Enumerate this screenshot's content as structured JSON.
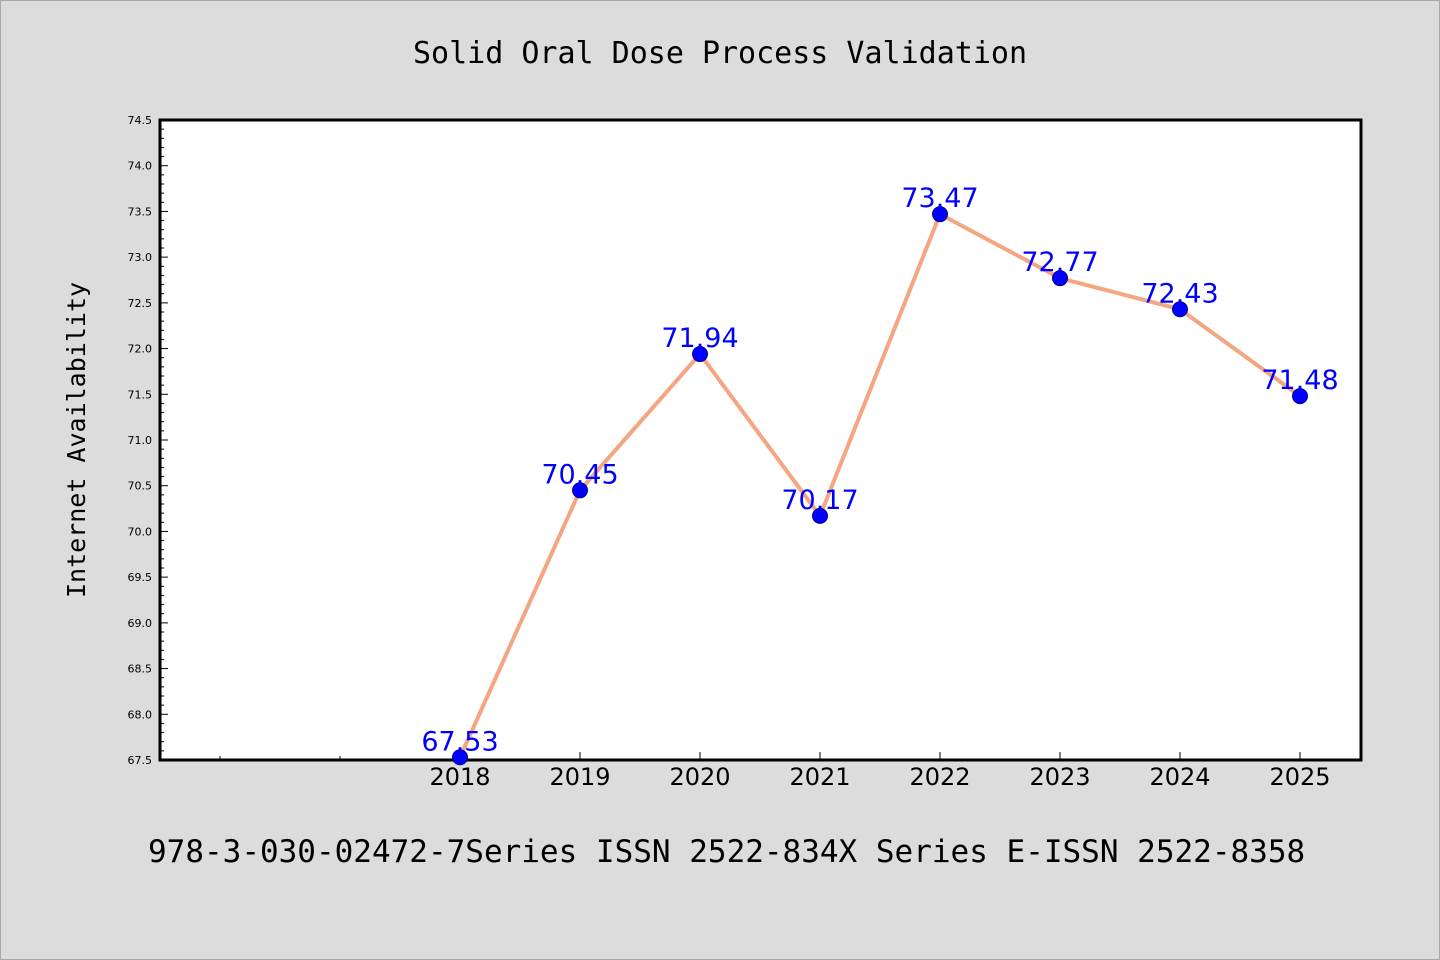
{
  "chart_data": {
    "type": "line",
    "title": "Solid Oral Dose Process Validation",
    "xlabel": "",
    "ylabel": "Internet Availability",
    "categories": [
      "2018",
      "2019",
      "2020",
      "2021",
      "2022",
      "2023",
      "2024",
      "2025"
    ],
    "values": [
      67.53,
      70.45,
      71.94,
      70.17,
      73.47,
      72.77,
      72.43,
      71.48
    ],
    "data_labels": [
      "67.53",
      "70.45",
      "71.94",
      "70.17",
      "73.47",
      "72.77",
      "72.43",
      "71.48"
    ],
    "ylim": [
      67.5,
      74.5
    ],
    "yticks": [
      "67.5",
      "68.0",
      "68.5",
      "69.0",
      "69.5",
      "70.0",
      "70.5",
      "71.0",
      "71.5",
      "72.0",
      "72.5",
      "73.0",
      "73.5",
      "74.0",
      "74.5"
    ],
    "grid": false,
    "legend": "none",
    "colors": {
      "line": "#f4a582",
      "marker": "#0000ff",
      "label": "#0000ff",
      "plot_bg": "#ffffff",
      "page_bg": "#dcdcdc"
    }
  },
  "footnote": "978-3-030-02472-7Series ISSN 2522-834X Series E-ISSN 2522-8358"
}
